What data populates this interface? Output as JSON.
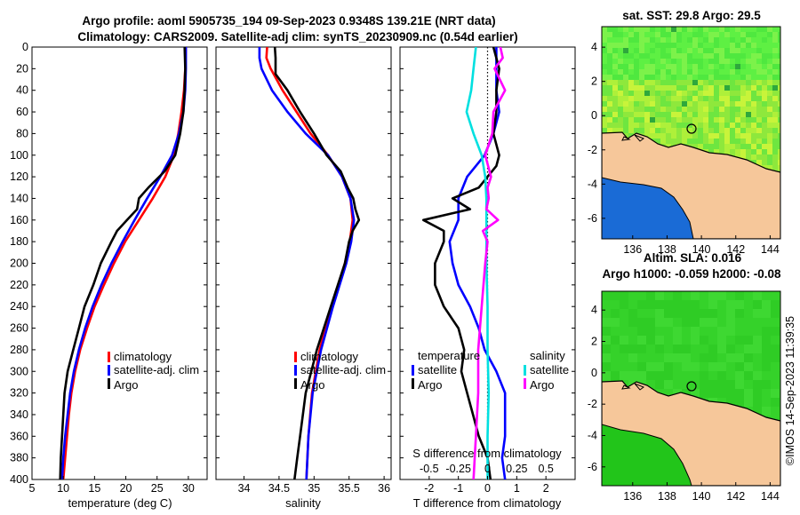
{
  "title": {
    "line1": "Argo profile: aoml 5905735_194 09-Sep-2023 0.9348S 139.21E (NRT data)",
    "line2": "Climatology: CARS2009. Satellite-adj clim: synTS_20230909.nc (0.54d earlier)"
  },
  "colors": {
    "climatology": "#ff0000",
    "satellite": "#0000ff",
    "argo": "#000000",
    "salinity_sat": "#00e0e0",
    "salinity_argo": "#ff00ff",
    "land": "#f6c79a"
  },
  "chart_data": [
    {
      "type": "line",
      "id": "temperature",
      "xlabel": "temperature (deg C)",
      "ylabel": "",
      "xlim": [
        5,
        33
      ],
      "ylim": [
        400,
        0
      ],
      "xticks": [
        5,
        10,
        15,
        20,
        25,
        30
      ],
      "xtick_labels": [
        "5",
        "10",
        "15",
        "20",
        "25",
        "30"
      ],
      "yticks": [
        0,
        20,
        40,
        60,
        80,
        100,
        120,
        140,
        160,
        180,
        200,
        220,
        240,
        260,
        280,
        300,
        320,
        340,
        360,
        380,
        400
      ],
      "ytick_labels": [
        "0",
        "20",
        "40",
        "60",
        "80",
        "100",
        "120",
        "140",
        "160",
        "180",
        "200",
        "220",
        "240",
        "260",
        "280",
        "300",
        "320",
        "340",
        "360",
        "380",
        "400"
      ],
      "legend": [
        "climatology",
        "satellite-adj. clim",
        "Argo"
      ],
      "series": [
        {
          "name": "climatology",
          "color": "#ff0000",
          "depth": [
            0,
            20,
            40,
            60,
            80,
            100,
            120,
            140,
            160,
            180,
            200,
            220,
            240,
            260,
            280,
            300,
            320,
            340,
            360,
            380,
            400
          ],
          "values": [
            29.6,
            29.5,
            29.3,
            28.9,
            28.4,
            27.7,
            26.3,
            24.3,
            22.1,
            19.9,
            18.1,
            16.5,
            15.0,
            13.8,
            12.7,
            11.9,
            11.3,
            10.9,
            10.6,
            10.3,
            10.0
          ]
        },
        {
          "name": "satellite-adj. clim",
          "color": "#0000ff",
          "depth": [
            0,
            20,
            40,
            60,
            80,
            100,
            120,
            140,
            160,
            180,
            200,
            220,
            240,
            260,
            280,
            300,
            320,
            340,
            360,
            380,
            400
          ],
          "values": [
            29.6,
            29.6,
            29.5,
            29.2,
            28.5,
            27.4,
            25.5,
            23.4,
            21.4,
            19.5,
            17.7,
            16.1,
            14.7,
            13.5,
            12.5,
            11.7,
            11.1,
            10.7,
            10.3,
            10.0,
            9.8
          ]
        },
        {
          "name": "Argo",
          "color": "#000000",
          "depth": [
            0,
            20,
            40,
            60,
            80,
            100,
            115,
            130,
            140,
            150,
            160,
            170,
            180,
            200,
            220,
            240,
            260,
            280,
            300,
            320,
            340,
            360,
            380,
            400
          ],
          "values": [
            29.4,
            29.5,
            29.4,
            29.2,
            28.7,
            27.9,
            26.2,
            23.6,
            22.1,
            21.8,
            20.2,
            18.6,
            17.7,
            16.0,
            14.8,
            13.4,
            12.5,
            11.6,
            10.7,
            10.2,
            10.0,
            9.8,
            9.6,
            9.5
          ]
        }
      ]
    },
    {
      "type": "line",
      "id": "salinity",
      "xlabel": "salinity",
      "ylabel": "",
      "xlim": [
        33.6,
        36.1
      ],
      "ylim": [
        400,
        0
      ],
      "xticks": [
        34,
        34.5,
        35,
        35.5,
        36
      ],
      "xtick_labels": [
        "34",
        "34.5",
        "35",
        "35.5",
        "36"
      ],
      "legend": [
        "climatology",
        "satellite-adj. clim",
        "Argo"
      ],
      "series": [
        {
          "name": "climatology",
          "color": "#ff0000",
          "depth": [
            0,
            10,
            20,
            40,
            60,
            80,
            100,
            120,
            140,
            160,
            180,
            200,
            240,
            280,
            320,
            360,
            400
          ],
          "values": [
            34.33,
            34.32,
            34.38,
            34.55,
            34.75,
            34.95,
            35.2,
            35.4,
            35.52,
            35.55,
            35.51,
            35.44,
            35.25,
            35.08,
            34.97,
            34.92,
            34.89
          ]
        },
        {
          "name": "satellite-adj. clim",
          "color": "#0000ff",
          "depth": [
            0,
            10,
            20,
            40,
            60,
            80,
            100,
            120,
            140,
            160,
            180,
            200,
            240,
            280,
            320,
            360,
            400
          ],
          "values": [
            34.22,
            34.22,
            34.25,
            34.4,
            34.62,
            34.88,
            35.2,
            35.4,
            35.52,
            35.57,
            35.53,
            35.46,
            35.27,
            35.1,
            34.98,
            34.92,
            34.89
          ]
        },
        {
          "name": "Argo",
          "color": "#000000",
          "depth": [
            0,
            10,
            25,
            40,
            60,
            80,
            100,
            115,
            130,
            140,
            150,
            160,
            170,
            180,
            200,
            240,
            280,
            320,
            360,
            380,
            400
          ],
          "values": [
            34.44,
            34.45,
            34.45,
            34.62,
            34.8,
            35.0,
            35.18,
            35.38,
            35.48,
            35.56,
            35.59,
            35.64,
            35.55,
            35.5,
            35.44,
            35.24,
            35.04,
            34.88,
            34.8,
            34.76,
            34.72
          ]
        }
      ]
    },
    {
      "type": "line",
      "id": "differences",
      "xlabel": "T difference from climatology",
      "xlabel_top": "S difference from climatology",
      "xlim": [
        -3,
        3
      ],
      "ylim": [
        400,
        0
      ],
      "xticks": [
        -2,
        -1,
        0,
        1,
        2
      ],
      "xtick_labels": [
        "-2",
        "-1",
        "0",
        "1",
        "2"
      ],
      "xticks_top": [
        -0.5,
        -0.25,
        0,
        0.25,
        0.5
      ],
      "xtick_labels_top": [
        "-0.5",
        "-0.25",
        "0",
        "0.25",
        "0.5"
      ],
      "legend_temperature": {
        "title": "temperature",
        "items": [
          "satellite",
          "Argo"
        ]
      },
      "legend_salinity": {
        "title": "salinity",
        "items": [
          "satellite",
          "Argo"
        ]
      },
      "series": [
        {
          "name": "temperature satellite",
          "color": "#0000ff",
          "depth": [
            0,
            20,
            40,
            60,
            80,
            100,
            120,
            140,
            160,
            180,
            200,
            220,
            240,
            260,
            280,
            300,
            320,
            340,
            360,
            380,
            400
          ],
          "values": [
            0.3,
            0.3,
            0.3,
            0.4,
            0.2,
            -0.1,
            -0.7,
            -1.0,
            -1.0,
            -1.3,
            -1.2,
            -1.0,
            -0.6,
            -0.3,
            -0.1,
            0.3,
            0.6,
            0.6,
            0.6,
            0.5,
            0.6
          ]
        },
        {
          "name": "temperature Argo",
          "color": "#000000",
          "depth": [
            0,
            20,
            40,
            60,
            80,
            100,
            110,
            120,
            130,
            140,
            150,
            160,
            170,
            180,
            200,
            220,
            240,
            260,
            280,
            300,
            320,
            340,
            360,
            380,
            400
          ],
          "values": [
            0.2,
            0.4,
            0.3,
            0.3,
            0.2,
            0.4,
            0.3,
            0.0,
            -0.3,
            -1.2,
            -0.6,
            -2.2,
            -1.5,
            -1.5,
            -1.8,
            -1.8,
            -1.5,
            -1.0,
            -0.8,
            -0.9,
            -0.7,
            -0.5,
            -0.3,
            0.0,
            0.1
          ]
        },
        {
          "name": "salinity satellite",
          "color": "#00e0e0",
          "depth": [
            0,
            20,
            40,
            60,
            80,
            100,
            120,
            140,
            160,
            180,
            200,
            240,
            280,
            320,
            360,
            400
          ],
          "values": [
            -0.1,
            -0.12,
            -0.14,
            -0.18,
            -0.12,
            -0.05,
            -0.02,
            -0.01,
            -0.01,
            -0.01,
            -0.01,
            0.0,
            0.0,
            0.01,
            0.0,
            0.0
          ]
        },
        {
          "name": "salinity Argo",
          "color": "#ff00ff",
          "depth": [
            0,
            10,
            20,
            40,
            60,
            80,
            100,
            120,
            130,
            140,
            150,
            160,
            170,
            180,
            200,
            240,
            280,
            320,
            360,
            400
          ],
          "values": [
            0.11,
            0.13,
            0.06,
            0.15,
            0.05,
            0.04,
            -0.02,
            0.03,
            0.0,
            0.01,
            -0.01,
            0.09,
            -0.04,
            0.0,
            -0.02,
            -0.05,
            -0.08,
            -0.08,
            -0.1,
            -0.12
          ]
        }
      ]
    },
    {
      "type": "heatmap",
      "id": "sst_map",
      "title": "sat. SST: 29.8 Argo: 29.5",
      "xticks": [
        136,
        138,
        140,
        142,
        144
      ],
      "xtick_labels": [
        "136",
        "138",
        "140",
        "142",
        "144"
      ],
      "yticks": [
        4,
        2,
        0,
        -2,
        -4,
        -6
      ],
      "ytick_labels": [
        "4",
        "2",
        "0",
        "-2",
        "-4",
        "-6"
      ],
      "xlim": [
        134.2,
        144.6
      ],
      "ylim": [
        -7.2,
        5.2
      ],
      "profile_location": {
        "lon": 139.21,
        "lat": -0.9348
      }
    },
    {
      "type": "heatmap",
      "id": "sla_map",
      "title_line1": "Altim. SLA: 0.016",
      "title_line2": "Argo h1000: -0.059 h2000: -0.08",
      "xticks": [
        136,
        138,
        140,
        142,
        144
      ],
      "xtick_labels": [
        "136",
        "138",
        "140",
        "142",
        "144"
      ],
      "yticks": [
        4,
        2,
        0,
        -2,
        -4,
        -6
      ],
      "ytick_labels": [
        "4",
        "2",
        "0",
        "-2",
        "-4",
        "-6"
      ],
      "xlim": [
        134.2,
        144.6
      ],
      "ylim": [
        -7.2,
        5.2
      ],
      "profile_location": {
        "lon": 139.21,
        "lat": -0.9348
      }
    }
  ],
  "credit": "©IMOS 14-Sep-2023 11:39:35"
}
